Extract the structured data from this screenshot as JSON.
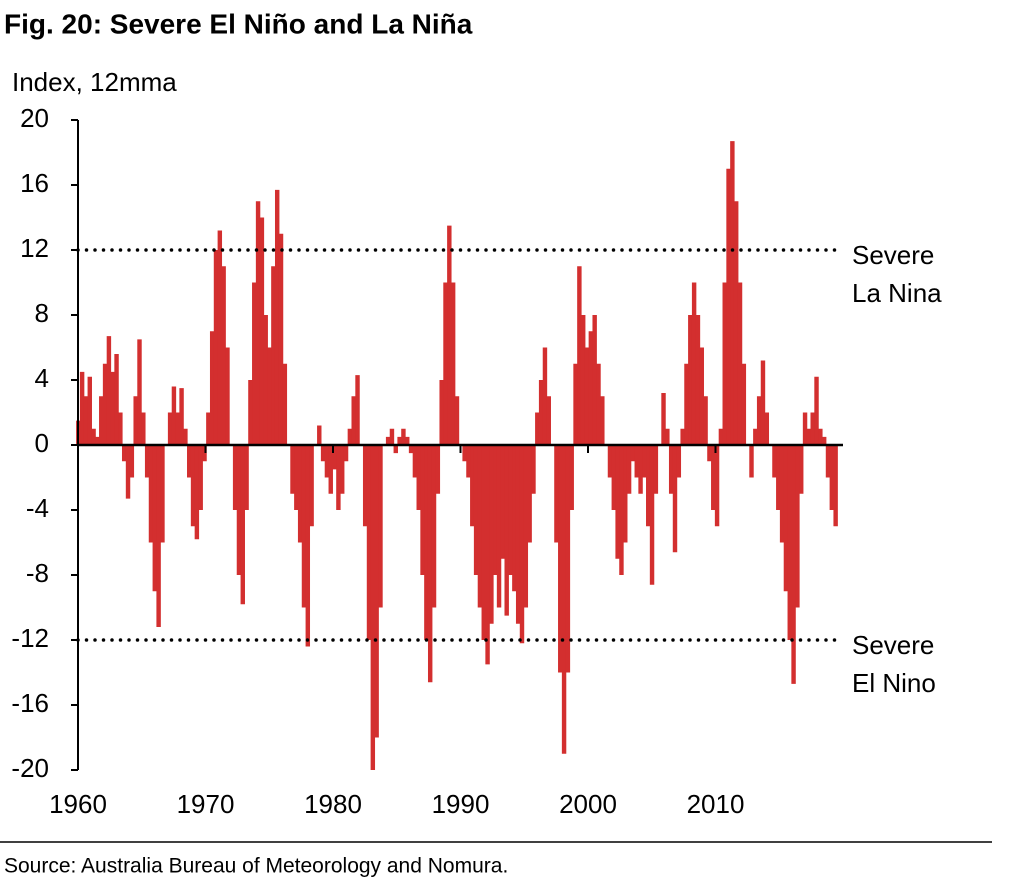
{
  "chart_data": {
    "type": "bar",
    "title": "Fig. 20: Severe El Niño and La Niña",
    "y_label": "Index, 12mma",
    "source": "Source: Australia Bureau of Meteorology and Nomura.",
    "color": "#d32f2f",
    "xlim": [
      1960,
      2020
    ],
    "xticks": [
      1960,
      1970,
      1980,
      1990,
      2000,
      2010
    ],
    "ylim": [
      -20,
      20
    ],
    "yticks": [
      20,
      16,
      12,
      8,
      4,
      0,
      -4,
      -8,
      -12,
      -16,
      -20
    ],
    "reference_lines": [
      {
        "value": 12,
        "label": [
          "Severe",
          "La Nina"
        ]
      },
      {
        "value": -12,
        "label": [
          "Severe",
          "El Nino"
        ]
      }
    ],
    "x": [
      1960.0,
      1960.3,
      1960.6,
      1960.9,
      1961.2,
      1961.5,
      1961.8,
      1962.1,
      1962.4,
      1962.7,
      1963.0,
      1963.3,
      1963.6,
      1963.9,
      1964.2,
      1964.5,
      1964.8,
      1965.1,
      1965.4,
      1965.7,
      1966.0,
      1966.3,
      1966.6,
      1966.9,
      1967.2,
      1967.5,
      1967.8,
      1968.1,
      1968.4,
      1968.7,
      1969.0,
      1969.3,
      1969.6,
      1969.9,
      1970.2,
      1970.5,
      1970.8,
      1971.1,
      1971.4,
      1971.7,
      1972.0,
      1972.3,
      1972.6,
      1972.9,
      1973.2,
      1973.5,
      1973.8,
      1974.1,
      1974.4,
      1974.7,
      1975.0,
      1975.3,
      1975.6,
      1975.9,
      1976.2,
      1976.5,
      1976.8,
      1977.1,
      1977.4,
      1977.7,
      1978.0,
      1978.3,
      1978.6,
      1978.9,
      1979.2,
      1979.5,
      1979.8,
      1980.1,
      1980.4,
      1980.7,
      1981.0,
      1981.3,
      1981.6,
      1981.9,
      1982.2,
      1982.5,
      1982.8,
      1983.1,
      1983.4,
      1983.7,
      1984.0,
      1984.3,
      1984.6,
      1984.9,
      1985.2,
      1985.5,
      1985.8,
      1986.1,
      1986.4,
      1986.7,
      1987.0,
      1987.3,
      1987.6,
      1987.9,
      1988.2,
      1988.5,
      1988.8,
      1989.1,
      1989.4,
      1989.7,
      1990.0,
      1990.3,
      1990.6,
      1990.9,
      1991.2,
      1991.5,
      1991.8,
      1992.1,
      1992.4,
      1992.7,
      1993.0,
      1993.3,
      1993.6,
      1993.9,
      1994.2,
      1994.5,
      1994.8,
      1995.1,
      1995.4,
      1995.7,
      1996.0,
      1996.3,
      1996.6,
      1996.9,
      1997.2,
      1997.5,
      1997.8,
      1998.1,
      1998.4,
      1998.7,
      1999.0,
      1999.3,
      1999.6,
      1999.9,
      2000.2,
      2000.5,
      2000.8,
      2001.1,
      2001.4,
      2001.7,
      2002.0,
      2002.3,
      2002.6,
      2002.9,
      2003.2,
      2003.5,
      2003.8,
      2004.1,
      2004.4,
      2004.7,
      2005.0,
      2005.3,
      2005.6,
      2005.9,
      2006.2,
      2006.5,
      2006.8,
      2007.1,
      2007.4,
      2007.7,
      2008.0,
      2008.3,
      2008.6,
      2008.9,
      2009.2,
      2009.5,
      2009.8,
      2010.1,
      2010.4,
      2010.7,
      2011.0,
      2011.3,
      2011.6,
      2011.9,
      2012.2,
      2012.5,
      2012.8,
      2013.1,
      2013.4,
      2013.7,
      2014.0,
      2014.3,
      2014.6,
      2014.9,
      2015.2,
      2015.5,
      2015.8,
      2016.1,
      2016.4,
      2016.7,
      2017.0,
      2017.3,
      2017.6,
      2017.9,
      2018.2,
      2018.5,
      2018.8,
      2019.1,
      2019.4
    ],
    "values": [
      1.5,
      4.5,
      3,
      4.2,
      1,
      0.5,
      3,
      5,
      6.7,
      4.5,
      5.6,
      2,
      -1,
      -3.3,
      -2,
      3,
      6.5,
      2,
      -2,
      -6,
      -9,
      -11.2,
      -6,
      0,
      2,
      3.6,
      2,
      3.5,
      1,
      -2,
      -5,
      -5.8,
      -4,
      -1,
      2,
      7,
      12,
      13.2,
      11,
      6,
      0,
      -4,
      -8,
      -9.8,
      -4,
      4,
      10,
      15,
      14,
      8,
      6,
      11,
      15.7,
      13,
      5,
      0,
      -3,
      -4,
      -6,
      -10,
      -12.4,
      -5,
      0,
      1.2,
      -1,
      -2,
      -3,
      -1.5,
      -4,
      -3,
      -1,
      1,
      3,
      4.3,
      0,
      -5,
      -12,
      -20,
      -18,
      -10,
      0,
      0.5,
      1,
      -0.5,
      0.5,
      1,
      0.5,
      -0.5,
      -2,
      -4,
      -8,
      -12,
      -14.6,
      -10,
      -3,
      4,
      10,
      13.5,
      10,
      3,
      0,
      -1,
      -2,
      -5,
      -8,
      -10,
      -12,
      -13.5,
      -11,
      -8,
      -10,
      -7,
      -10.5,
      -8,
      -9,
      -11,
      -12.2,
      -10,
      -6,
      -3,
      2,
      4,
      6,
      3,
      0,
      -6,
      -14,
      -19,
      -14,
      -4,
      5,
      11,
      8,
      6,
      7,
      8,
      5,
      3,
      0,
      -2,
      -4,
      -7,
      -8,
      -6,
      -3,
      -1,
      -2,
      -3,
      -2,
      -5,
      -8.6,
      -3,
      0,
      3.2,
      1,
      -3,
      -6.6,
      -2,
      1,
      5,
      8,
      10,
      8,
      6,
      3,
      -1,
      -4,
      -5,
      1,
      10,
      17,
      18.7,
      15,
      10,
      5,
      0,
      -2,
      1,
      3,
      5.2,
      2,
      0,
      -2,
      -4,
      -6,
      -9,
      -12,
      -14.7,
      -10,
      -3,
      2,
      1,
      2,
      4.2,
      1,
      0.5,
      -2,
      -4,
      -5
    ]
  }
}
